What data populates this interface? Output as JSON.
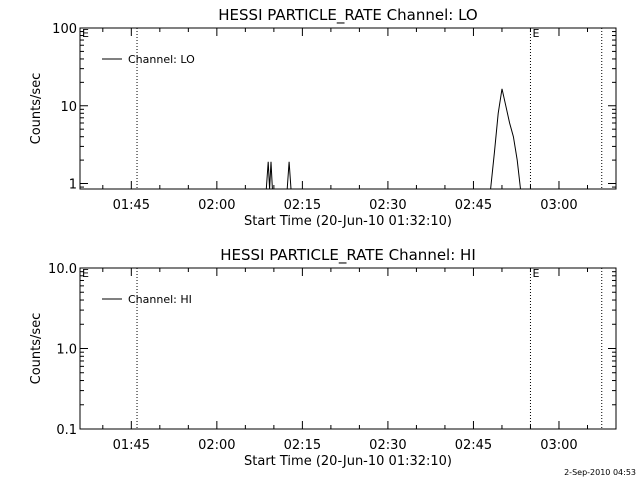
{
  "footer": {
    "timestamp": "2-Sep-2010 04:53"
  },
  "chart_data": [
    {
      "type": "line",
      "title": "HESSI PARTICLE_RATE Channel: LO",
      "xlabel": "Start Time (20-Jun-10 01:32:10)",
      "ylabel": "Counts/sec",
      "yscale": "log",
      "ylim": [
        0.85,
        100
      ],
      "xlim": [
        "01:36:00",
        "03:10:00"
      ],
      "x_ticks": [
        "01:45",
        "02:00",
        "02:15",
        "02:30",
        "02:45",
        "03:00"
      ],
      "y_ticks": [
        {
          "value": 1,
          "label": "1"
        },
        {
          "value": 10,
          "label": "10"
        },
        {
          "value": 100,
          "label": "100"
        }
      ],
      "legend": {
        "position": "top-left",
        "entries": [
          "Channel: LO"
        ]
      },
      "markers": [
        {
          "time": "01:46:00",
          "label": ""
        },
        {
          "time": "02:55:00",
          "label": "E"
        },
        {
          "time": "03:07:30",
          "label": ""
        }
      ],
      "start_marker_label": "E",
      "series": [
        {
          "name": "Channel: LO",
          "segments": [
            {
              "x": [
                "02:08:40",
                "02:09:00",
                "02:09:15",
                "02:09:30",
                "02:09:45"
              ],
              "y": [
                0.85,
                1.9,
                0.85,
                1.9,
                0.85
              ]
            },
            {
              "x": [
                "02:12:20",
                "02:12:40",
                "02:13:00"
              ],
              "y": [
                0.85,
                1.9,
                0.85
              ]
            },
            {
              "x": [
                "02:48:00",
                "02:48:40",
                "02:49:20",
                "02:50:00",
                "02:50:40",
                "02:51:20",
                "02:52:00",
                "02:52:40",
                "02:53:15"
              ],
              "y": [
                0.85,
                2.5,
                8,
                16.5,
                10,
                6,
                4,
                2,
                0.85
              ]
            }
          ]
        }
      ]
    },
    {
      "type": "line",
      "title": "HESSI PARTICLE_RATE Channel: HI",
      "xlabel": "Start Time (20-Jun-10 01:32:10)",
      "ylabel": "Counts/sec",
      "yscale": "log",
      "ylim": [
        0.1,
        10
      ],
      "xlim": [
        "01:36:00",
        "03:10:00"
      ],
      "x_ticks": [
        "01:45",
        "02:00",
        "02:15",
        "02:30",
        "02:45",
        "03:00"
      ],
      "y_ticks": [
        {
          "value": 0.1,
          "label": "0.1"
        },
        {
          "value": 1,
          "label": "1.0"
        },
        {
          "value": 10,
          "label": "10.0"
        }
      ],
      "legend": {
        "position": "top-left",
        "entries": [
          "Channel: HI"
        ]
      },
      "markers": [
        {
          "time": "01:46:00",
          "label": ""
        },
        {
          "time": "02:55:00",
          "label": "E"
        },
        {
          "time": "03:07:30",
          "label": ""
        }
      ],
      "start_marker_label": "E",
      "series": [
        {
          "name": "Channel: HI",
          "segments": []
        }
      ]
    }
  ]
}
